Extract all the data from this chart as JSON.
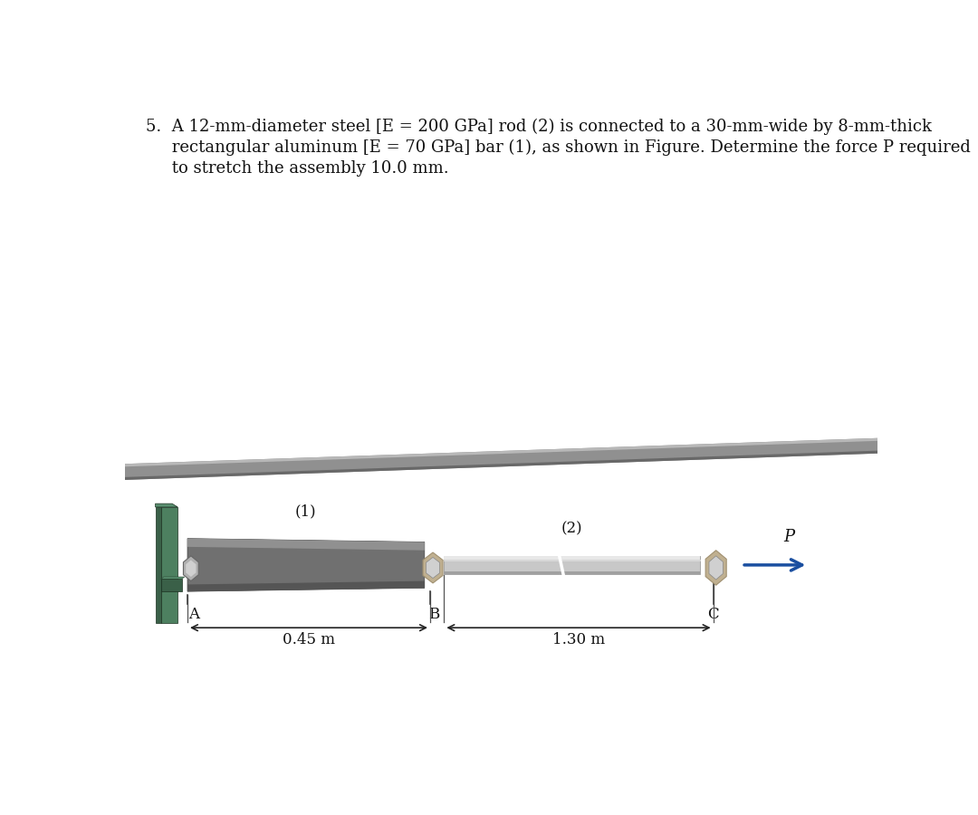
{
  "bg_color": "#ffffff",
  "text_line1": "5.  A 12-mm-diameter steel [E = 200 GPa] rod (2) is connected to a 30-mm-wide by 8-mm-thick",
  "text_line2": "     rectangular aluminum [E = 70 GPa] bar (1), as shown in Figure. Determine the force P required",
  "text_line3": "     to stretch the assembly 10.0 mm.",
  "label_1": "(1)",
  "label_2": "(2)",
  "label_A": "A",
  "label_B": "B",
  "label_C": "C",
  "label_P": "P",
  "dim_1": "0.45 m",
  "dim_2": "1.30 m",
  "wall_green": "#4d8060",
  "wall_green_dark": "#3a6048",
  "wall_green_light": "#5a9070",
  "bar1_main": "#707070",
  "bar1_top": "#909090",
  "bar1_bottom": "#555555",
  "rod2_main": "#c8c8c8",
  "rod2_top": "#e8e8e8",
  "rod2_bottom": "#a0a0a0",
  "nut_main": "#c0b090",
  "nut_dark": "#a09070",
  "nut_light": "#d8c8a0",
  "hex_main": "#b0b0b0",
  "hex_light": "#d0d0d0",
  "arrow_color": "#1a4fa0",
  "gray_bar_main": "#909090",
  "gray_bar_light": "#b8b8b8",
  "gray_bar_dark": "#686868",
  "dim_color": "#222222"
}
